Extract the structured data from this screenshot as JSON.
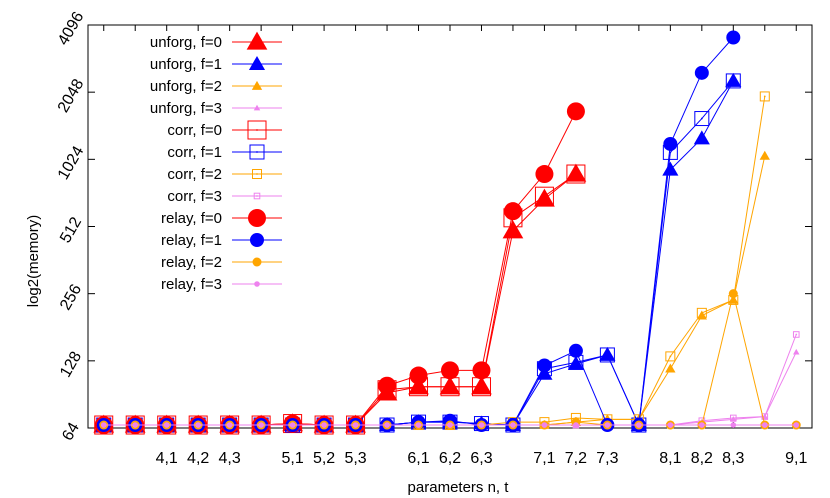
{
  "chart_data": {
    "type": "line",
    "xlabel": "parameters n, t",
    "ylabel": "log2(memory)",
    "y_scale": "log2",
    "ylim": [
      64,
      4096
    ],
    "y_ticks": [
      64,
      128,
      256,
      512,
      1024,
      2048,
      4096
    ],
    "grid": false,
    "legend_position": "top-left",
    "x": [
      "3,9",
      "4,0",
      "4,1",
      "4,2",
      "4,3",
      "5,0",
      "5,1",
      "5,2",
      "5,3",
      "6,0",
      "6,1",
      "6,2",
      "6,3",
      "7,0",
      "7,1",
      "7,2",
      "7,3",
      "8,0",
      "8,1",
      "8,2",
      "8,3",
      "9,0",
      "9,1"
    ],
    "x_tick_labels": [
      "4,1",
      "4,2",
      "4,3",
      "5,1",
      "5,2",
      "5,3",
      "6,1",
      "6,2",
      "6,3",
      "7,1",
      "7,2",
      "7,3",
      "8,1",
      "8,2",
      "8,3",
      "9,1"
    ],
    "series": [
      {
        "name": "unforg, f=0",
        "color": "#ff0000",
        "marker": "triangle",
        "size": "large",
        "values": [
          66,
          66,
          66,
          66,
          66,
          66,
          67,
          66,
          66,
          92,
          98,
          98,
          98,
          490,
          680,
          880,
          null,
          null,
          null,
          null,
          null,
          null,
          null
        ]
      },
      {
        "name": "unforg, f=1",
        "color": "#0000ff",
        "marker": "triangle",
        "size": "medium",
        "values": [
          66,
          66,
          66,
          66,
          66,
          66,
          66,
          66,
          66,
          66,
          68,
          68,
          67,
          66,
          112,
          124,
          136,
          66,
          920,
          1270,
          2300,
          null,
          null
        ]
      },
      {
        "name": "unforg, f=2",
        "color": "#ffa500",
        "marker": "triangle",
        "size": "small",
        "values": [
          66,
          66,
          66,
          66,
          66,
          66,
          66,
          66,
          66,
          66,
          66,
          66,
          66,
          66,
          66,
          68,
          70,
          70,
          118,
          204,
          240,
          1060,
          null
        ]
      },
      {
        "name": "unforg, f=3",
        "color": "#ee82ee",
        "marker": "triangle",
        "size": "tiny",
        "values": [
          66,
          66,
          66,
          66,
          66,
          66,
          66,
          66,
          66,
          66,
          66,
          66,
          66,
          66,
          66,
          66,
          66,
          66,
          66,
          68,
          70,
          72,
          140
        ]
      },
      {
        "name": "corr, f=0",
        "color": "#ff0000",
        "marker": "square-dot",
        "size": "large",
        "values": [
          66,
          66,
          66,
          66,
          66,
          66,
          67,
          66,
          66,
          95,
          98,
          98,
          98,
          560,
          700,
          880,
          null,
          null,
          null,
          null,
          null,
          null,
          null
        ]
      },
      {
        "name": "corr, f=1",
        "color": "#0000ff",
        "marker": "square-dot",
        "size": "medium",
        "values": [
          66,
          66,
          66,
          66,
          66,
          66,
          66,
          66,
          66,
          66,
          68,
          68,
          67,
          66,
          118,
          126,
          136,
          66,
          1100,
          1560,
          2300,
          null,
          null
        ]
      },
      {
        "name": "corr, f=2",
        "color": "#ffa500",
        "marker": "square-dot",
        "size": "small",
        "values": [
          66,
          66,
          66,
          66,
          66,
          66,
          66,
          66,
          66,
          66,
          66,
          66,
          66,
          68,
          68,
          71,
          70,
          70,
          134,
          210,
          240,
          1960,
          null
        ]
      },
      {
        "name": "corr, f=3",
        "color": "#ee82ee",
        "marker": "square-dot",
        "size": "tiny",
        "values": [
          66,
          66,
          66,
          66,
          66,
          66,
          66,
          66,
          66,
          66,
          66,
          66,
          66,
          66,
          66,
          66,
          66,
          66,
          66,
          69,
          71,
          72,
          168
        ]
      },
      {
        "name": "relay, f=0",
        "color": "#ff0000",
        "marker": "circle",
        "size": "large",
        "values": [
          66,
          66,
          66,
          66,
          66,
          66,
          67,
          66,
          66,
          99,
          110,
          116,
          116,
          600,
          880,
          1680,
          null,
          null,
          null,
          null,
          null,
          null,
          null
        ]
      },
      {
        "name": "relay, f=1",
        "color": "#0000ff",
        "marker": "circle",
        "size": "medium",
        "values": [
          66,
          66,
          66,
          66,
          66,
          66,
          66,
          66,
          66,
          66,
          68,
          69,
          66,
          66,
          122,
          142,
          66,
          66,
          1200,
          2500,
          3600,
          null,
          null
        ]
      },
      {
        "name": "relay, f=2",
        "color": "#ffa500",
        "marker": "circle",
        "size": "small",
        "values": [
          66,
          66,
          66,
          66,
          66,
          66,
          66,
          66,
          66,
          66,
          66,
          66,
          66,
          66,
          66,
          68,
          66,
          66,
          66,
          66,
          256,
          66,
          66
        ]
      },
      {
        "name": "relay, f=3",
        "color": "#ee82ee",
        "marker": "circle",
        "size": "tiny",
        "values": [
          66,
          66,
          66,
          66,
          66,
          66,
          66,
          66,
          66,
          66,
          66,
          66,
          66,
          66,
          66,
          66,
          66,
          66,
          66,
          66,
          66,
          66,
          66
        ]
      }
    ]
  }
}
